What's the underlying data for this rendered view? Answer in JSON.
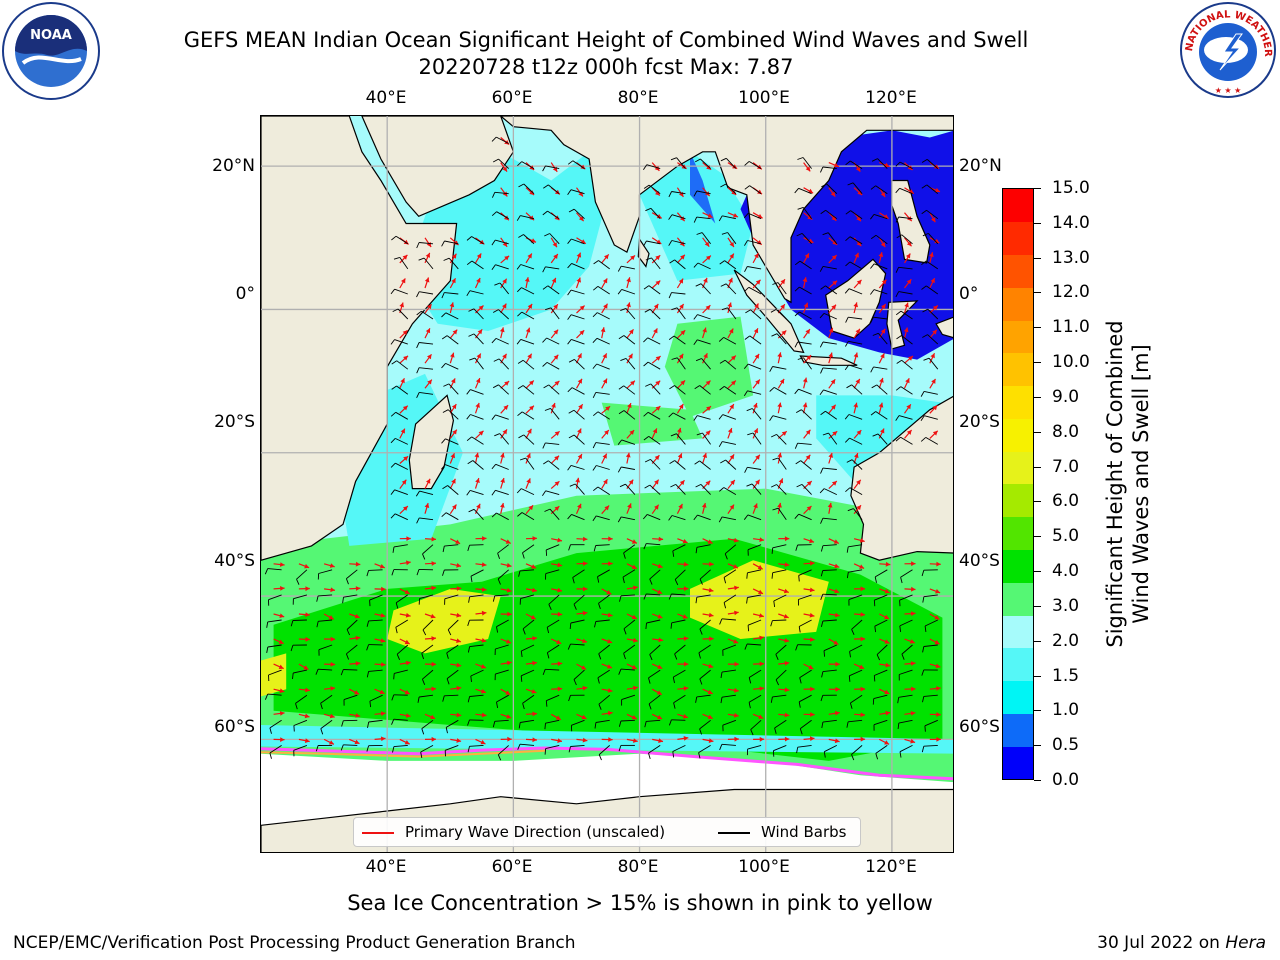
{
  "title": {
    "line1": "GEFS MEAN Indian Ocean Significant Height of Combined Wind Waves and Swell",
    "line2": "20220728 t12z 000h fcst   Max: 7.87"
  },
  "map": {
    "lon_range": [
      20,
      130
    ],
    "lat_range": [
      -76,
      27
    ],
    "lon_ticks": [
      "40°E",
      "60°E",
      "80°E",
      "100°E",
      "120°E"
    ],
    "lat_ticks": [
      "20°N",
      "0°",
      "20°S",
      "40°S",
      "60°S"
    ],
    "land_color": "#efecdc",
    "ocean_colors": {
      "near_shore": "#55f7f7",
      "open_ocean": "#a6fbfb",
      "moderate": "#55f774",
      "rough": "#00e200",
      "high": "#e6f21a",
      "sheltered": "#1e6cf7",
      "enclosed_seas": "#1010e8",
      "sea_ice": "#ff55ff",
      "antarctica": "#ffffff"
    },
    "arrow_color": "#ee1111",
    "barb_color": "#000000"
  },
  "colorbar": {
    "label_line1": "Significant Height of Combined",
    "label_line2": "Wind Waves and Swell [m]",
    "ticks": [
      "0.0",
      "0.5",
      "1.0",
      "1.5",
      "2.0",
      "3.0",
      "4.0",
      "5.0",
      "6.0",
      "7.0",
      "8.0",
      "9.0",
      "10.0",
      "11.0",
      "12.0",
      "13.0",
      "14.0",
      "15.0"
    ],
    "colors": [
      "#0000fa",
      "#0d6bf9",
      "#00f5f5",
      "#55f7f7",
      "#a6fbfb",
      "#55f774",
      "#00e200",
      "#52e500",
      "#a5ea00",
      "#e6f21a",
      "#f7f100",
      "#fee000",
      "#ffc200",
      "#ffa300",
      "#ff8300",
      "#ff5300",
      "#ff2a00",
      "#fd0000"
    ]
  },
  "legend": {
    "wave_direction": "Primary Wave Direction (unscaled)",
    "wind_barbs": "Wind Barbs"
  },
  "caption": "Sea Ice Concentration > 15% is shown in pink to yellow",
  "footer": {
    "left": "NCEP/EMC/Verification Post Processing Product Generation Branch",
    "date": "30 Jul 2022 on ",
    "machine": "Hera"
  },
  "logos": {
    "noaa_text": "NOAA",
    "nws_text": "NATIONAL WEATHER SERVICE"
  }
}
